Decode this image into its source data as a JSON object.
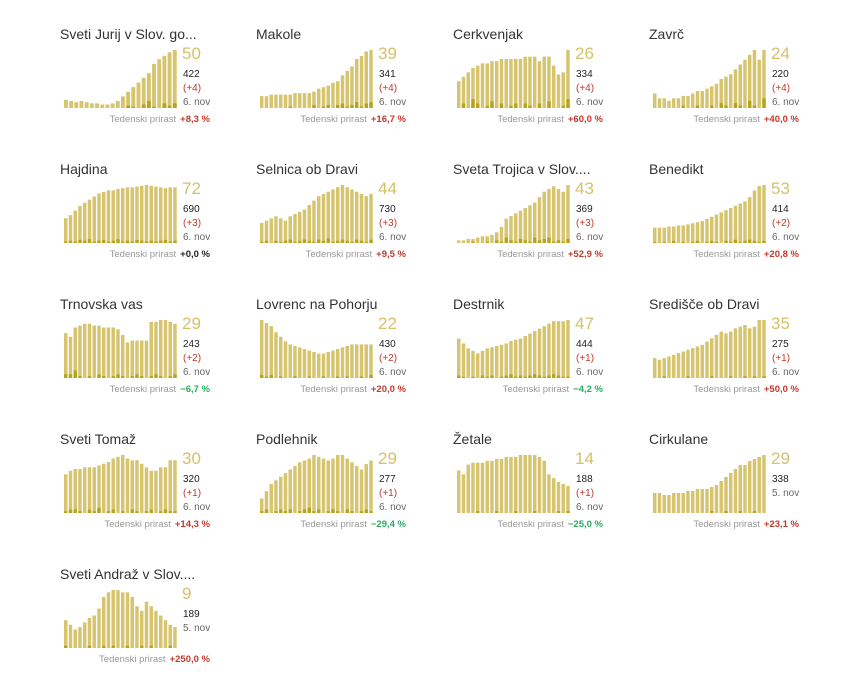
{
  "colors": {
    "bar_total": "#d6c46e",
    "bar_new": "#b5a41c",
    "big_number": "#d6c06a",
    "increase": "#c0392b",
    "decrease": "#27ae60",
    "neutral": "#222222"
  },
  "weekly_label": "Tedenski prirast",
  "chart_data": [
    {
      "type": "bar",
      "title": "Sveti Jurij v Slov. go...",
      "active": 50,
      "total": 422,
      "change": "(+4)",
      "date": "6. nov",
      "weekly": "+8,3 %",
      "trend": "up",
      "values": [
        7,
        6,
        5,
        6,
        5,
        4,
        4,
        3,
        3,
        4,
        6,
        10,
        14,
        18,
        22,
        26,
        30,
        38,
        42,
        45,
        48,
        50
      ],
      "new": [
        0,
        0,
        0,
        0,
        0,
        0,
        0,
        0,
        0,
        0,
        0,
        0,
        2,
        1,
        0,
        3,
        6,
        1,
        0,
        4,
        2,
        4
      ]
    },
    {
      "type": "bar",
      "title": "Makole",
      "active": 39,
      "total": 341,
      "change": "(+4)",
      "date": "6. nov",
      "weekly": "+16,7 %",
      "trend": "up",
      "values": [
        8,
        8,
        9,
        9,
        9,
        9,
        9,
        10,
        10,
        10,
        10,
        11,
        13,
        14,
        15,
        17,
        18,
        22,
        25,
        28,
        33,
        35,
        38,
        39
      ],
      "new": [
        0,
        0,
        0,
        0,
        0,
        0,
        1,
        0,
        0,
        0,
        0,
        2,
        0,
        1,
        2,
        0,
        2,
        3,
        1,
        2,
        4,
        1,
        3,
        4
      ]
    },
    {
      "type": "bar",
      "title": "Cerkvenjak",
      "active": 26,
      "total": 334,
      "change": "(+4)",
      "date": "6. nov",
      "weekly": "+60,0 %",
      "trend": "up",
      "values": [
        12,
        14,
        16,
        18,
        19,
        20,
        20,
        21,
        21,
        22,
        22,
        22,
        22,
        22,
        23,
        23,
        23,
        21,
        23,
        23,
        19,
        15,
        16,
        26
      ],
      "new": [
        0,
        2,
        0,
        4,
        2,
        0,
        1,
        3,
        0,
        2,
        0,
        1,
        2,
        0,
        2,
        1,
        0,
        2,
        0,
        3,
        0,
        0,
        1,
        4
      ]
    },
    {
      "type": "bar",
      "title": "Zavrč",
      "active": 24,
      "total": 220,
      "change": "(+4)",
      "date": "6. nov",
      "weekly": "+40,0 %",
      "trend": "up",
      "values": [
        6,
        4,
        4,
        3,
        4,
        4,
        5,
        5,
        6,
        7,
        7,
        8,
        9,
        10,
        12,
        13,
        14,
        16,
        18,
        20,
        22,
        24,
        20,
        24
      ],
      "new": [
        0,
        0,
        0,
        0,
        0,
        0,
        1,
        0,
        0,
        1,
        0,
        0,
        1,
        0,
        2,
        1,
        0,
        2,
        1,
        0,
        3,
        1,
        0,
        4
      ]
    },
    {
      "type": "bar",
      "title": "Hajdina",
      "active": 72,
      "total": 690,
      "change": "(+3)",
      "date": "6. nov",
      "weekly": "+0,0 %",
      "trend": "flat",
      "values": [
        32,
        36,
        42,
        48,
        52,
        56,
        60,
        64,
        66,
        68,
        68,
        70,
        71,
        72,
        72,
        73,
        74,
        75,
        74,
        73,
        72,
        71,
        72,
        72
      ],
      "new": [
        2,
        3,
        2,
        4,
        3,
        5,
        2,
        3,
        4,
        2,
        3,
        5,
        2,
        3,
        2,
        4,
        3,
        2,
        3,
        2,
        3,
        4,
        2,
        3
      ]
    },
    {
      "type": "bar",
      "title": "Selnica ob Dravi",
      "active": 44,
      "total": 730,
      "change": "(+3)",
      "date": "6. nov",
      "weekly": "+9,5 %",
      "trend": "up",
      "values": [
        18,
        20,
        22,
        24,
        22,
        20,
        24,
        26,
        28,
        30,
        34,
        38,
        42,
        44,
        46,
        48,
        50,
        52,
        50,
        48,
        46,
        44,
        42,
        44
      ],
      "new": [
        1,
        2,
        0,
        2,
        1,
        2,
        3,
        1,
        2,
        3,
        2,
        1,
        3,
        2,
        4,
        1,
        2,
        3,
        2,
        1,
        3,
        2,
        1,
        3
      ]
    },
    {
      "type": "bar",
      "title": "Sveta Trojica v Slov....",
      "active": 43,
      "total": 369,
      "change": "(+3)",
      "date": "6. nov",
      "weekly": "+52,9 %",
      "trend": "up",
      "values": [
        2,
        2,
        3,
        3,
        4,
        5,
        5,
        6,
        8,
        12,
        18,
        20,
        22,
        24,
        26,
        28,
        30,
        34,
        38,
        40,
        42,
        40,
        38,
        43
      ],
      "new": [
        0,
        0,
        0,
        1,
        0,
        0,
        1,
        0,
        2,
        1,
        4,
        2,
        1,
        3,
        2,
        1,
        4,
        2,
        3,
        4,
        1,
        2,
        1,
        3
      ]
    },
    {
      "type": "bar",
      "title": "Benedikt",
      "active": 53,
      "total": 414,
      "change": "(+2)",
      "date": "6. nov",
      "weekly": "+20,8 %",
      "trend": "up",
      "values": [
        14,
        14,
        14,
        15,
        15,
        16,
        16,
        17,
        18,
        19,
        20,
        22,
        24,
        26,
        28,
        30,
        32,
        34,
        36,
        38,
        42,
        48,
        52,
        53
      ],
      "new": [
        1,
        0,
        1,
        0,
        2,
        0,
        1,
        0,
        1,
        2,
        0,
        1,
        2,
        1,
        0,
        2,
        1,
        3,
        1,
        2,
        3,
        2,
        1,
        2
      ]
    },
    {
      "type": "bar",
      "title": "Trnovska vas",
      "active": 29,
      "total": 243,
      "change": "(+2)",
      "date": "6. nov",
      "weekly": "−6,7 %",
      "trend": "down",
      "values": [
        24,
        22,
        27,
        28,
        29,
        29,
        28,
        28,
        27,
        27,
        27,
        26,
        23,
        19,
        20,
        20,
        20,
        20,
        30,
        30,
        31,
        31,
        30,
        29
      ],
      "new": [
        2,
        2,
        4,
        1,
        0,
        1,
        0,
        2,
        1,
        0,
        1,
        2,
        1,
        0,
        1,
        2,
        1,
        0,
        1,
        2,
        1,
        0,
        1,
        2
      ]
    },
    {
      "type": "bar",
      "title": "Lovrenc na Pohorju",
      "active": 22,
      "total": 430,
      "change": "(+2)",
      "date": "6. nov",
      "weekly": "+20,0 %",
      "trend": "up",
      "values": [
        38,
        36,
        34,
        30,
        27,
        24,
        22,
        21,
        20,
        19,
        18,
        17,
        16,
        16,
        17,
        18,
        19,
        20,
        21,
        22,
        22,
        22,
        22,
        22
      ],
      "new": [
        2,
        1,
        2,
        0,
        1,
        0,
        0,
        1,
        0,
        0,
        1,
        0,
        0,
        1,
        0,
        0,
        1,
        0,
        1,
        0,
        0,
        1,
        0,
        2
      ]
    },
    {
      "type": "bar",
      "title": "Destrnik",
      "active": 47,
      "total": 444,
      "change": "(+1)",
      "date": "6. nov",
      "weekly": "−4,2 %",
      "trend": "down",
      "values": [
        32,
        28,
        24,
        22,
        20,
        22,
        24,
        25,
        26,
        27,
        28,
        30,
        31,
        32,
        34,
        36,
        38,
        40,
        42,
        44,
        46,
        46,
        46,
        47
      ],
      "new": [
        2,
        1,
        0,
        1,
        0,
        2,
        1,
        2,
        0,
        1,
        2,
        3,
        1,
        2,
        1,
        2,
        3,
        2,
        1,
        2,
        3,
        2,
        1,
        1
      ]
    },
    {
      "type": "bar",
      "title": "Središče ob Dravi",
      "active": 35,
      "total": 275,
      "change": "(+1)",
      "date": "6. nov",
      "weekly": "+50,0 %",
      "trend": "up",
      "values": [
        12,
        11,
        12,
        13,
        14,
        15,
        16,
        17,
        18,
        19,
        20,
        22,
        24,
        26,
        28,
        27,
        28,
        30,
        31,
        32,
        30,
        31,
        35,
        35
      ],
      "new": [
        0,
        0,
        1,
        0,
        0,
        0,
        0,
        1,
        0,
        0,
        0,
        0,
        1,
        0,
        0,
        0,
        1,
        0,
        0,
        1,
        0,
        1,
        0,
        1
      ]
    },
    {
      "type": "bar",
      "title": "Sveti Tomaž",
      "active": 30,
      "total": 320,
      "change": "(+1)",
      "date": "6. nov",
      "weekly": "+14,3 %",
      "trend": "up",
      "values": [
        22,
        24,
        25,
        25,
        26,
        26,
        26,
        27,
        28,
        29,
        31,
        32,
        33,
        31,
        30,
        30,
        28,
        26,
        24,
        24,
        26,
        26,
        30,
        30
      ],
      "new": [
        1,
        2,
        2,
        1,
        0,
        2,
        1,
        3,
        0,
        1,
        2,
        0,
        1,
        0,
        2,
        1,
        0,
        1,
        2,
        0,
        1,
        2,
        1,
        1
      ]
    },
    {
      "type": "bar",
      "title": "Podlehnik",
      "active": 29,
      "total": 277,
      "change": "(+1)",
      "date": "6. nov",
      "weekly": "−29,4 %",
      "trend": "down",
      "values": [
        8,
        12,
        16,
        18,
        20,
        22,
        24,
        26,
        28,
        29,
        30,
        32,
        31,
        30,
        29,
        30,
        32,
        32,
        30,
        28,
        26,
        24,
        27,
        29
      ],
      "new": [
        1,
        2,
        0,
        1,
        2,
        1,
        2,
        0,
        1,
        2,
        3,
        1,
        2,
        0,
        1,
        2,
        1,
        0,
        2,
        1,
        0,
        1,
        2,
        1
      ]
    },
    {
      "type": "bar",
      "title": "Žetale",
      "active": 14,
      "total": 188,
      "change": "(+1)",
      "date": "6. nov",
      "weekly": "−25,0 %",
      "trend": "down",
      "values": [
        22,
        20,
        25,
        26,
        26,
        26,
        27,
        27,
        28,
        28,
        29,
        29,
        29,
        30,
        30,
        30,
        30,
        29,
        27,
        20,
        18,
        16,
        15,
        14
      ],
      "new": [
        0,
        0,
        0,
        0,
        1,
        0,
        0,
        0,
        1,
        0,
        0,
        0,
        1,
        0,
        0,
        0,
        1,
        0,
        0,
        0,
        0,
        1,
        0,
        1
      ]
    },
    {
      "type": "bar",
      "title": "Cirkulane",
      "active": 29,
      "total": 338,
      "change": "",
      "date": "5. nov",
      "weekly": "+23,1 %",
      "trend": "up",
      "values": [
        10,
        10,
        9,
        9,
        10,
        10,
        10,
        11,
        11,
        12,
        12,
        12,
        13,
        14,
        16,
        18,
        20,
        22,
        24,
        24,
        26,
        27,
        28,
        29
      ],
      "new": [
        0,
        0,
        0,
        0,
        0,
        0,
        0,
        0,
        0,
        0,
        0,
        0,
        1,
        0,
        0,
        1,
        0,
        0,
        1,
        0,
        0,
        1,
        0,
        0
      ]
    },
    {
      "type": "bar",
      "title": "Sveti Andraž v Slov....",
      "active": 9,
      "total": 189,
      "change": "",
      "date": "5. nov",
      "weekly": "+250,0 %",
      "trend": "up",
      "values": [
        12,
        10,
        8,
        9,
        11,
        13,
        14,
        17,
        22,
        24,
        25,
        25,
        24,
        24,
        22,
        18,
        16,
        20,
        18,
        16,
        14,
        12,
        10,
        9
      ],
      "new": [
        1,
        0,
        0,
        0,
        0,
        1,
        0,
        0,
        1,
        0,
        1,
        0,
        0,
        1,
        0,
        0,
        1,
        0,
        1,
        0,
        0,
        0,
        1,
        0
      ]
    }
  ]
}
